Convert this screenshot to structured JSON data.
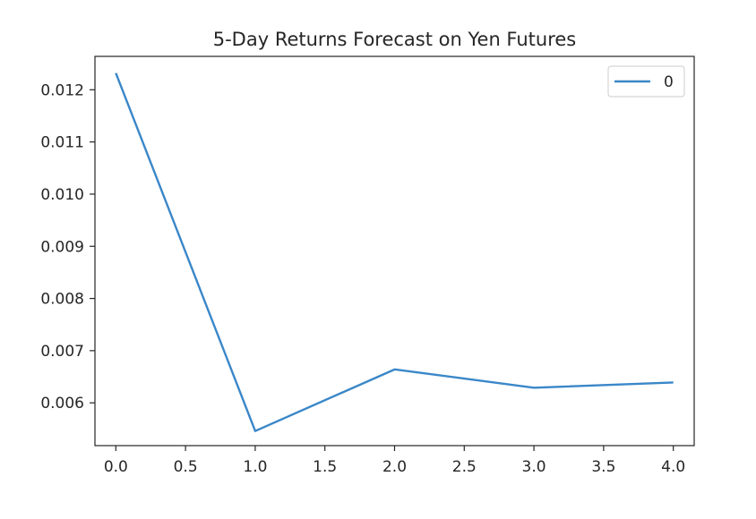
{
  "chart_data": {
    "type": "line",
    "title": "5-Day Returns Forecast on Yen Futures",
    "xlabel": "",
    "ylabel": "",
    "x": [
      0.0,
      1.0,
      2.0,
      3.0,
      4.0
    ],
    "series": [
      {
        "name": "0",
        "color": "#3a87c8",
        "values": [
          0.01232,
          0.00546,
          0.00664,
          0.00629,
          0.00639
        ]
      }
    ],
    "xlim": [
      -0.15,
      4.15
    ],
    "ylim": [
      0.00518,
      0.01264
    ],
    "xticks": [
      0.0,
      0.5,
      1.0,
      1.5,
      2.0,
      2.5,
      3.0,
      3.5,
      4.0
    ],
    "xtick_labels": [
      "0.0",
      "0.5",
      "1.0",
      "1.5",
      "2.0",
      "2.5",
      "3.0",
      "3.5",
      "4.0"
    ],
    "yticks": [
      0.006,
      0.007,
      0.008,
      0.009,
      0.01,
      0.011,
      0.012
    ],
    "ytick_labels": [
      "0.006",
      "0.007",
      "0.008",
      "0.009",
      "0.010",
      "0.011",
      "0.012"
    ],
    "grid": false,
    "legend": "top-right"
  }
}
